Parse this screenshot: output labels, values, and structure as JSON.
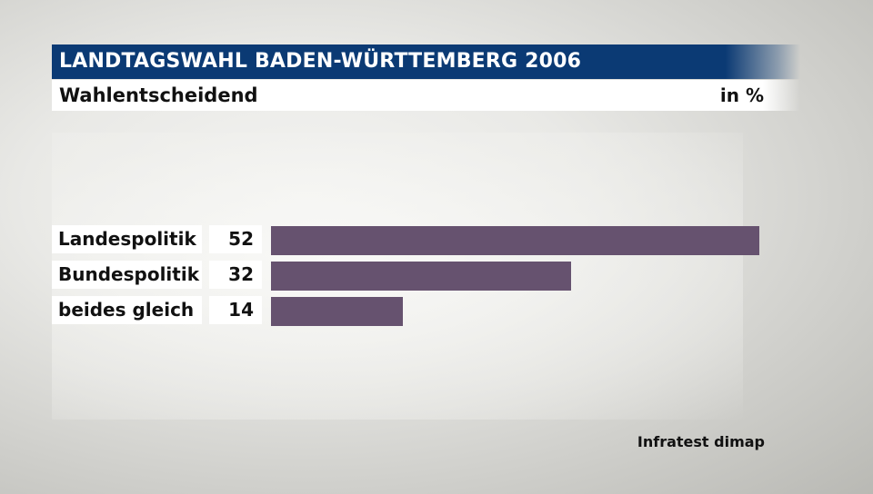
{
  "header": {
    "title": "LANDTAGSWAHL BADEN-WÜRTTEMBERG 2006",
    "subtitle": "Wahlentscheidend",
    "unit": "in %"
  },
  "source": "Infratest dimap",
  "colors": {
    "title_bg": "#0b3a74",
    "bar": "#66526f"
  },
  "chart_data": {
    "type": "bar",
    "orientation": "horizontal",
    "title": "LANDTAGSWAHL BADEN-WÜRTTEMBERG 2006",
    "subtitle": "Wahlentscheidend",
    "unit": "in %",
    "categories": [
      "Landespolitik",
      "Bundespolitik",
      "beides gleich"
    ],
    "values": [
      52,
      32,
      14
    ],
    "value_labels": [
      "52",
      "32",
      "14"
    ],
    "xlim": [
      0,
      52
    ],
    "grid": false,
    "legend": "none"
  }
}
